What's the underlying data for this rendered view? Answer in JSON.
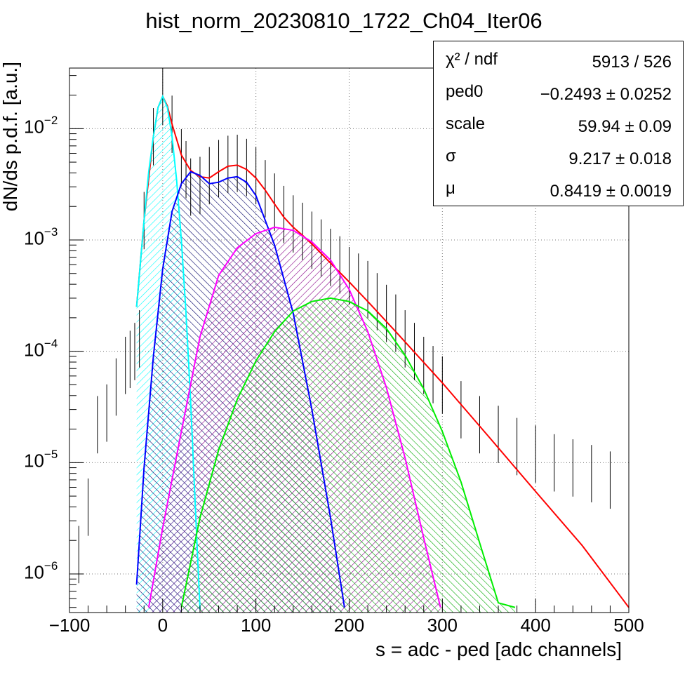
{
  "chart_data": {
    "type": "line",
    "title": "hist_norm_20230810_1722_Ch04_Iter06",
    "xlabel": "s = adc - ped [adc channels]",
    "ylabel": "dN/ds p.d.f. [a.u.]",
    "xlim": [
      -100,
      500
    ],
    "ylim": [
      4.5e-07,
      0.035
    ],
    "yscale": "log",
    "grid": true,
    "x_ticks": [
      "−100",
      "0",
      "100",
      "200",
      "300",
      "400",
      "500"
    ],
    "y_ticks": [
      {
        "base": "10",
        "exp": "−2",
        "value": 0.01
      },
      {
        "base": "10",
        "exp": "−3",
        "value": 0.001
      },
      {
        "base": "10",
        "exp": "−4",
        "value": 0.0001
      },
      {
        "base": "10",
        "exp": "−5",
        "value": 1e-05
      },
      {
        "base": "10",
        "exp": "−6",
        "value": 1e-06
      }
    ],
    "stats": [
      {
        "key": "χ² / ndf",
        "value": "5913 / 526"
      },
      {
        "key": "ped0",
        "value": "−0.2493 ± 0.0252"
      },
      {
        "key": "scale",
        "value": "59.94 ± 0.09"
      },
      {
        "key": "σ",
        "value": "9.217 ± 0.018"
      },
      {
        "key": "μ",
        "value": "0.8419 ± 0.0019"
      }
    ],
    "series": [
      {
        "color": "#ff0000",
        "role": "total fit",
        "x": [
          -28,
          -20,
          -10,
          -5,
          0,
          5,
          10,
          20,
          30,
          40,
          50,
          60,
          70,
          80,
          90,
          100,
          110,
          120,
          130,
          140,
          150,
          160,
          180,
          200,
          220,
          250,
          300,
          350,
          400,
          450,
          500
        ],
        "y": [
          0.00025,
          0.0015,
          0.0085,
          0.0155,
          0.0195,
          0.016,
          0.011,
          0.0058,
          0.0042,
          0.0037,
          0.0036,
          0.0041,
          0.0046,
          0.0047,
          0.0043,
          0.0036,
          0.0028,
          0.0021,
          0.0016,
          0.0013,
          0.0011,
          0.00092,
          0.00062,
          0.00042,
          0.00028,
          0.00015,
          5.2e-05,
          1.7e-05,
          5.5e-06,
          1.8e-06,
          5e-07
        ]
      },
      {
        "color": "#00ffff",
        "role": "pedestal component",
        "fill": "#00ffff",
        "x": [
          -28,
          -20,
          -15,
          -10,
          -5,
          0,
          5,
          10,
          15,
          20,
          25,
          30,
          35,
          40
        ],
        "y": [
          0.00025,
          0.0015,
          0.0041,
          0.0085,
          0.0155,
          0.0195,
          0.0155,
          0.0085,
          0.0034,
          0.001,
          0.00022,
          3.5e-05,
          4e-06,
          4.8e-07
        ]
      },
      {
        "color": "#0000ff",
        "role": "1 p.e. component",
        "fill": "#000066",
        "x": [
          -28,
          -20,
          -10,
          0,
          10,
          20,
          30,
          40,
          50,
          60,
          70,
          80,
          90,
          100,
          120,
          140,
          160,
          180,
          195
        ],
        "y": [
          8e-07,
          9e-06,
          9e-05,
          0.00055,
          0.0018,
          0.0032,
          0.0041,
          0.0038,
          0.0032,
          0.0033,
          0.0036,
          0.0037,
          0.0033,
          0.0025,
          0.0009,
          0.00022,
          3e-05,
          3.2e-06,
          5e-07
        ]
      },
      {
        "color": "#ff00ff",
        "role": "2 p.e. component",
        "fill": "#880088",
        "x": [
          -15,
          0,
          20,
          40,
          60,
          80,
          100,
          120,
          140,
          160,
          180,
          200,
          220,
          240,
          260,
          280,
          298
        ],
        "y": [
          5e-07,
          2.6e-06,
          1.9e-05,
          0.000135,
          0.00048,
          0.00085,
          0.00114,
          0.0013,
          0.00122,
          0.00096,
          0.00066,
          0.00036,
          0.00015,
          4.7e-05,
          1.1e-05,
          2.1e-06,
          5e-07
        ]
      },
      {
        "color": "#00ee00",
        "role": "3 p.e. component",
        "fill": "#00aa00",
        "x": [
          20,
          40,
          60,
          80,
          100,
          120,
          140,
          160,
          180,
          200,
          220,
          240,
          260,
          280,
          300,
          320,
          340,
          360,
          378
        ],
        "y": [
          5e-07,
          3.2e-06,
          1.3e-05,
          3.7e-05,
          8.2e-05,
          0.00015,
          0.00023,
          0.00028,
          0.0003,
          0.00028,
          0.00023,
          0.00016,
          9.2e-05,
          4.6e-05,
          1.9e-05,
          6.7e-06,
          1.9e-06,
          5.5e-07,
          5e-07
        ]
      },
      {
        "color": "#000000",
        "role": "data histogram",
        "x": [
          -90,
          -80,
          -70,
          -60,
          -50,
          -40,
          -35,
          -30,
          -25,
          -20,
          -10,
          0,
          10,
          20,
          25,
          30,
          40,
          50,
          60,
          70,
          80,
          90,
          100,
          110,
          120,
          130,
          140,
          150,
          160,
          170,
          180,
          190,
          200,
          210,
          220,
          230,
          240,
          250,
          260,
          270,
          280,
          290,
          300,
          320,
          340,
          360,
          380,
          400,
          420,
          440,
          460,
          480,
          500
        ],
        "y": [
          1.5e-06,
          4e-06,
          2.2e-05,
          2.8e-05,
          4.8e-05,
          7.5e-05,
          8.5e-05,
          0.0001,
          0.00013,
          0.0015,
          0.0085,
          0.0195,
          0.011,
          0.0055,
          0.0043,
          0.003,
          0.0031,
          0.0038,
          0.0044,
          0.0048,
          0.0049,
          0.0045,
          0.0038,
          0.0029,
          0.0022,
          0.0017,
          0.0014,
          0.0012,
          0.001,
          0.00085,
          0.0007,
          0.0006,
          0.00048,
          0.00042,
          0.00036,
          0.00028,
          0.00022,
          0.00018,
          0.00013,
          0.0001,
          7.5e-05,
          6.2e-05,
          5e-05,
          3e-05,
          2.2e-05,
          1.8e-05,
          1.4e-05,
          1.2e-05,
          1e-05,
          9e-06,
          8e-06,
          7e-06,
          6e-06
        ]
      }
    ]
  }
}
